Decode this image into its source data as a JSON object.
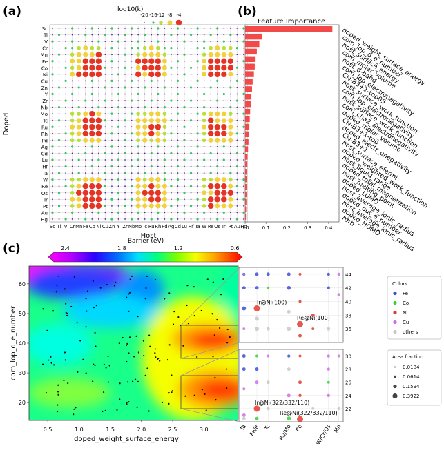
{
  "panel_labels": {
    "a": "(a)",
    "b": "(b)",
    "c": "(c)"
  },
  "chart_data": [
    {
      "type": "scatter",
      "panel": "a",
      "xlabel": "Host",
      "ylabel": "Doped",
      "legend_title": "log10(k)",
      "legend_values": [
        -20,
        -16,
        -12,
        -8,
        -4
      ],
      "legend_labels": [
        "-20",
        "-16",
        "-12",
        "-8",
        "-4"
      ],
      "legend_colors": [
        "#3b3bb3",
        "#35c46a",
        "#b9e03a",
        "#f2d13a",
        "#e53324"
      ],
      "hosts": [
        "Sc",
        "Ti",
        "V",
        "Cr",
        "Mn",
        "Fe",
        "Co",
        "Ni",
        "Cu",
        "Zn",
        "Y",
        "Zr",
        "Nb",
        "Mo",
        "Tc",
        "Ru",
        "Rh",
        "Pd",
        "Ag",
        "Cd",
        "Lu",
        "Hf",
        "Ta",
        "W",
        "Re",
        "Os",
        "Ir",
        "Pt",
        "Au",
        "Hg"
      ],
      "doped": [
        "Sc",
        "Ti",
        "V",
        "Cr",
        "Mn",
        "Fe",
        "Co",
        "Ni",
        "Cu",
        "Zn",
        "Y",
        "Zr",
        "Nb",
        "Mo",
        "Tc",
        "Ru",
        "Rh",
        "Pd",
        "Ag",
        "Cd",
        "Lu",
        "Hf",
        "Ta",
        "W",
        "Re",
        "Os",
        "Ir",
        "Pt",
        "Au",
        "Hg"
      ]
    },
    {
      "type": "bar",
      "panel": "b",
      "title": "Feature Importance",
      "categories": [
        "doped_weight_surface_energy",
        "com_lop_d_e_number",
        "host_surface_energy",
        "com_molar_volume",
        "host_d-band",
        "com_lop_electronegativity",
        "CN-B3+1-top05",
        "host_surface_work_function",
        "com_lop_electronegativity",
        "host_surface_work_function",
        "com_cha2_electronegativity",
        "doped_molar_volume",
        "CN-B3+1-top",
        "doped_electr_onegativity",
        "CN-B3+1",
        "host_surface_efermi",
        "doped_weighted_work_function",
        "host_liquid_range",
        "doped_total_magnetization",
        "host_melting_point",
        "doped_LUMO",
        "host_average_ionic_radius",
        "doped_out_e_number",
        "host_average_ionic_radius",
        "doped_HOMO",
        "rdrh"
      ],
      "values": [
        0.418,
        0.082,
        0.068,
        0.056,
        0.05,
        0.046,
        0.042,
        0.036,
        0.033,
        0.03,
        0.027,
        0.024,
        0.022,
        0.02,
        0.018,
        0.016,
        0.014,
        0.012,
        0.011,
        0.01,
        0.009,
        0.008,
        0.007,
        0.006,
        0.005,
        0.004
      ],
      "xlim": [
        0,
        0.45
      ],
      "xticks": [
        "0.0",
        "0.1",
        "0.2",
        "0.3",
        "0.4"
      ],
      "xtick_values": [
        0,
        0.1,
        0.2,
        0.3,
        0.4
      ],
      "bar_color": "#f24a4a"
    },
    {
      "type": "heatmap",
      "panel": "c",
      "xlabel": "doped_weight_surface_energy",
      "ylabel": "com_lop_d_e_number",
      "colorbar_title": "Barrier (eV)",
      "colorbar_ticks": [
        "2.4",
        "1.8",
        "1.2",
        "0.6"
      ],
      "colorbar_tick_values": [
        2.4,
        1.8,
        1.2,
        0.6
      ],
      "colorbar_range": [
        2.55,
        0.55
      ],
      "xlim": [
        0.2,
        3.55
      ],
      "ylim": [
        14,
        66
      ],
      "xticks": [
        "0.5",
        "1.0",
        "1.5",
        "2.0",
        "2.5",
        "3.0"
      ],
      "xtick_values": [
        0.5,
        1.0,
        1.5,
        2.0,
        2.5,
        3.0
      ],
      "yticks": [
        "20",
        "30",
        "40",
        "50",
        "60"
      ],
      "ytick_values": [
        20,
        30,
        40,
        50,
        60
      ],
      "zoom_upper": {
        "x_range": [
          2.35,
          3.55
        ],
        "y_range": [
          34,
          45
        ],
        "yticks": [
          "36",
          "38",
          "40",
          "42",
          "44"
        ],
        "ytick_values": [
          36,
          38,
          40,
          42,
          44
        ]
      },
      "zoom_lower": {
        "x_range": [
          2.35,
          3.55
        ],
        "y_range": [
          20,
          31
        ],
        "yticks": [
          "22",
          "24",
          "26",
          "28",
          "30"
        ],
        "ytick_values": [
          22,
          24,
          26,
          28,
          30
        ]
      },
      "zoom_xticks": [
        "Ta",
        "Fe/Ir",
        "Tc",
        "Ru/Mo",
        "Re",
        "W/Cr/Os",
        "Mn"
      ],
      "zoom_xtick_values": [
        2.4,
        2.55,
        2.68,
        2.92,
        3.05,
        3.38,
        3.5
      ],
      "annotations": [
        {
          "text": "Ir@Ni(100)",
          "panel": "zoom_upper",
          "x": 2.65,
          "y": 39.0
        },
        {
          "text": "Re@Ni(100)",
          "panel": "zoom_upper",
          "x": 3.05,
          "y": 36.7
        },
        {
          "text": "Ir@Ni(322/332/110)",
          "panel": "zoom_lower",
          "x": 2.65,
          "y": 22.0
        },
        {
          "text": "Re@Ni(322/332/110)",
          "panel": "zoom_lower",
          "x": 3.05,
          "y": 20.4
        }
      ],
      "colors_legend": {
        "title": "Colors",
        "items": [
          {
            "label": "Fe",
            "color": "#3d4fd6"
          },
          {
            "label": "Co",
            "color": "#3ccf3c"
          },
          {
            "label": "Ni",
            "color": "#e33b2f"
          },
          {
            "label": "Cu",
            "color": "#cf6ee8"
          },
          {
            "label": "others",
            "color": "#c8c8c8"
          }
        ]
      },
      "area_legend": {
        "title": "Area fraction",
        "values": [
          "0.0184",
          "0.0614",
          "0.1594",
          "0.3922"
        ]
      }
    }
  ]
}
